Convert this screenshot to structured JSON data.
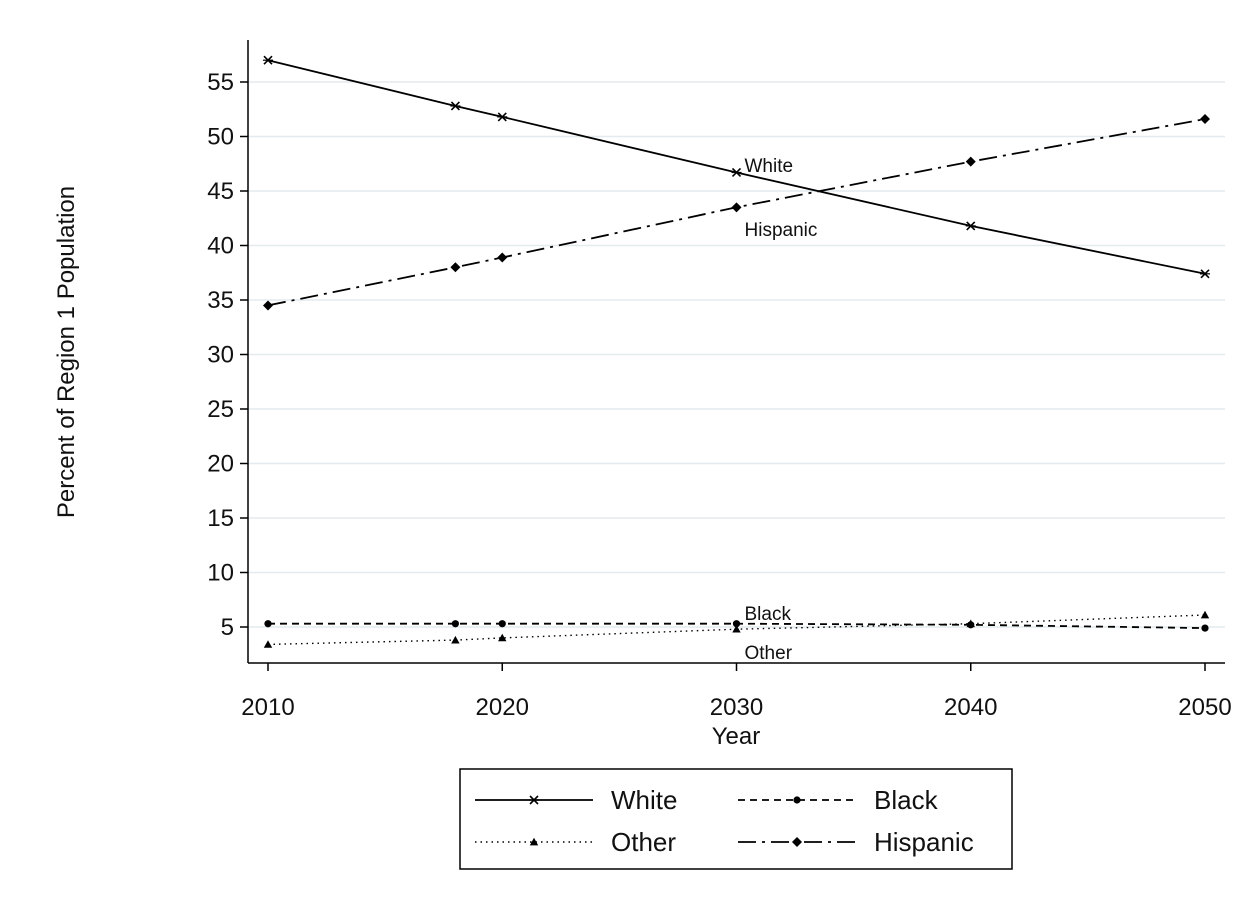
{
  "chart_data": {
    "type": "line",
    "title": "",
    "xlabel": "Year",
    "ylabel": "Percent of Region 1 Population",
    "x": [
      2010,
      2018,
      2020,
      2030,
      2040,
      2050
    ],
    "xticks": [
      2010,
      2020,
      2030,
      2040,
      2050
    ],
    "yticks": [
      5,
      10,
      15,
      20,
      25,
      30,
      35,
      40,
      45,
      50,
      55
    ],
    "xlim": [
      2010,
      2050
    ],
    "ylim": [
      3,
      57
    ],
    "grid": true,
    "legend_position": "bottom",
    "series": [
      {
        "name": "White",
        "line_style": "solid",
        "marker": "x",
        "values": [
          57.0,
          52.8,
          51.8,
          46.7,
          41.8,
          37.4
        ],
        "color": "#000000"
      },
      {
        "name": "Black",
        "line_style": "dashed",
        "marker": "circle",
        "values": [
          5.3,
          5.3,
          5.3,
          5.3,
          5.2,
          4.9
        ],
        "color": "#000000"
      },
      {
        "name": "Other",
        "line_style": "dotted",
        "marker": "triangle",
        "values": [
          3.4,
          3.8,
          4.0,
          4.8,
          5.3,
          6.1
        ],
        "color": "#000000"
      },
      {
        "name": "Hispanic",
        "line_style": "dashdot",
        "marker": "diamond",
        "values": [
          34.5,
          38.0,
          38.9,
          43.5,
          47.7,
          51.6
        ],
        "color": "#000000"
      }
    ],
    "annotations": [
      {
        "text": "White",
        "x": 2030,
        "y": 47.3
      },
      {
        "text": "Hispanic",
        "x": 2030,
        "y": 41.4
      },
      {
        "text": "Black",
        "x": 2030,
        "y": 6.2
      },
      {
        "text": "Other",
        "x": 2030,
        "y": 2.6
      }
    ]
  }
}
